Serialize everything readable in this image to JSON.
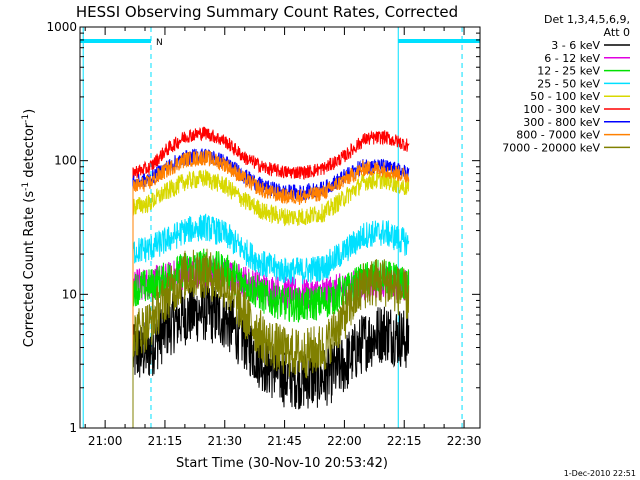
{
  "chart_data": {
    "type": "line",
    "title": "HESSI Observing Summary Count Rates, Corrected",
    "xlabel": "Start Time (30-Nov-10 20:53:42)",
    "ylabel_prefix": "Corrected Count Rate (s",
    "ylabel_sup1": "-1",
    "ylabel_mid": " detector",
    "ylabel_sup2": "-1",
    "ylabel_suffix": ")",
    "y_scale": "log",
    "ylim": [
      1,
      1000
    ],
    "xlim": [
      "20:53:42",
      "22:34:00"
    ],
    "x_ticks": [
      "21:00",
      "21:15",
      "21:30",
      "21:45",
      "22:00",
      "22:15",
      "22:30"
    ],
    "y_ticks": [
      "1",
      "10",
      "100",
      "1000"
    ],
    "grid": false,
    "legend_position": "right-outside",
    "legend_header": [
      "Det 1,3,4,5,6,9,",
      "Att 0"
    ],
    "timestamp": "1-Dec-2010 22:51",
    "data_start": "21:07:00",
    "data_end": "22:16:00",
    "night_intervals": [
      [
        "20:53:42",
        "21:11:30"
      ],
      [
        "22:13:30",
        "22:34:00"
      ]
    ],
    "saa_marker_label": "N",
    "saa_marker_time": "21:11:30",
    "dashed_lines": [
      "21:11:30",
      "22:29:30"
    ],
    "solid_lines": [
      "20:54:30",
      "22:13:30"
    ],
    "series": [
      {
        "name": "3 - 6 keV",
        "color": "#000000",
        "times": [
          "21:07",
          "21:11",
          "21:15",
          "21:20",
          "21:25",
          "21:30",
          "21:35",
          "21:40",
          "21:45",
          "21:50",
          "21:55",
          "22:00",
          "22:05",
          "22:10",
          "22:16"
        ],
        "values": [
          3.5,
          3.8,
          5.5,
          7.0,
          7.5,
          6.5,
          4.5,
          3.0,
          2.4,
          2.3,
          2.4,
          3.0,
          4.5,
          5.3,
          4.5
        ]
      },
      {
        "name": "6 - 12 keV",
        "color": "#e000e0",
        "times": [
          "21:07",
          "21:11",
          "21:15",
          "21:20",
          "21:25",
          "21:30",
          "21:35",
          "21:40",
          "21:45",
          "21:50",
          "21:55",
          "22:00",
          "22:05",
          "22:10",
          "22:16"
        ],
        "values": [
          12,
          12,
          13,
          14.5,
          15,
          14,
          12.5,
          11,
          10.3,
          10,
          10.3,
          11,
          12,
          12.5,
          11.5
        ]
      },
      {
        "name": "12 - 25 keV",
        "color": "#00e000",
        "times": [
          "21:07",
          "21:11",
          "21:15",
          "21:20",
          "21:25",
          "21:30",
          "21:35",
          "21:40",
          "21:45",
          "21:50",
          "21:55",
          "22:00",
          "22:05",
          "22:10",
          "22:16"
        ],
        "values": [
          11,
          11.5,
          13,
          15.5,
          16.5,
          15,
          12,
          9.5,
          8.5,
          8.3,
          8.8,
          10.5,
          13,
          13.5,
          11.5
        ]
      },
      {
        "name": "25 - 50 keV",
        "color": "#00e0ff",
        "times": [
          "21:07",
          "21:11",
          "21:15",
          "21:20",
          "21:25",
          "21:30",
          "21:35",
          "21:40",
          "21:45",
          "21:50",
          "21:55",
          "22:00",
          "22:05",
          "22:10",
          "22:16"
        ],
        "values": [
          21,
          22,
          25,
          30,
          32,
          28,
          21,
          16.5,
          15,
          15,
          16,
          21,
          28,
          29,
          24
        ]
      },
      {
        "name": "50 - 100 keV",
        "color": "#d8d800",
        "times": [
          "21:07",
          "21:11",
          "21:15",
          "21:20",
          "21:25",
          "21:30",
          "21:35",
          "21:40",
          "21:45",
          "21:50",
          "21:55",
          "22:00",
          "22:05",
          "22:10",
          "22:16"
        ],
        "values": [
          45,
          48,
          58,
          70,
          74,
          65,
          50,
          41,
          38,
          38,
          41,
          53,
          70,
          72,
          62
        ]
      },
      {
        "name": "100 - 300 keV",
        "color": "#ff0000",
        "times": [
          "21:07",
          "21:11",
          "21:15",
          "21:20",
          "21:25",
          "21:30",
          "21:35",
          "21:40",
          "21:45",
          "21:50",
          "21:55",
          "22:00",
          "22:05",
          "22:10",
          "22:16"
        ],
        "values": [
          82,
          88,
          118,
          152,
          162,
          140,
          105,
          88,
          82,
          82,
          88,
          108,
          145,
          150,
          130
        ]
      },
      {
        "name": "300 - 800 keV",
        "color": "#0000ff",
        "times": [
          "21:07",
          "21:11",
          "21:15",
          "21:20",
          "21:25",
          "21:30",
          "21:35",
          "21:40",
          "21:45",
          "21:50",
          "21:55",
          "22:00",
          "22:05",
          "22:10",
          "22:16"
        ],
        "values": [
          68,
          72,
          88,
          105,
          110,
          98,
          76,
          63,
          58,
          58,
          62,
          76,
          92,
          90,
          80
        ]
      },
      {
        "name": "800 - 7000 keV",
        "color": "#ff8000",
        "times": [
          "21:07",
          "21:11",
          "21:15",
          "21:20",
          "21:25",
          "21:30",
          "21:35",
          "21:40",
          "21:45",
          "21:50",
          "21:55",
          "22:00",
          "22:05",
          "22:10",
          "22:16"
        ],
        "values": [
          64,
          68,
          84,
          102,
          106,
          94,
          72,
          59,
          54,
          54,
          58,
          72,
          88,
          86,
          76
        ]
      },
      {
        "name": "7000 - 20000 keV",
        "color": "#808000",
        "times": [
          "21:07",
          "21:11",
          "21:15",
          "21:20",
          "21:25",
          "21:30",
          "21:35",
          "21:40",
          "21:45",
          "21:50",
          "21:55",
          "22:00",
          "22:05",
          "22:10",
          "22:16"
        ],
        "values": [
          5.0,
          6.0,
          9.5,
          14,
          14.5,
          12,
          7.0,
          4.5,
          3.7,
          3.6,
          4.0,
          7.0,
          12,
          12.5,
          9.5
        ]
      }
    ]
  }
}
